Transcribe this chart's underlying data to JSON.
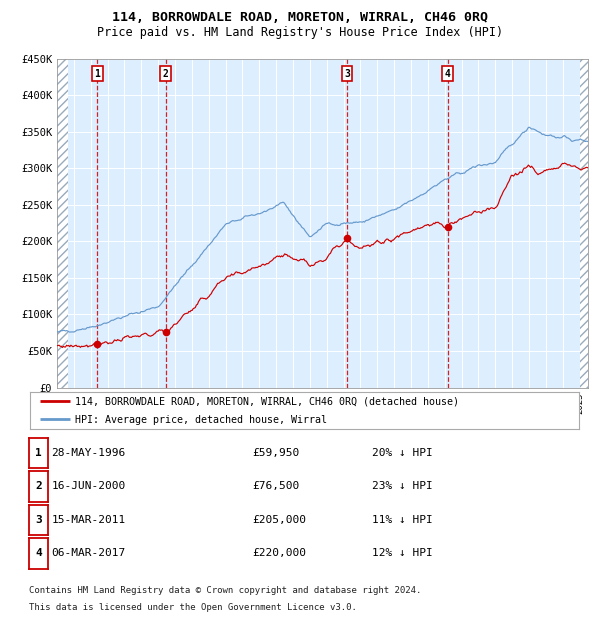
{
  "title": "114, BORROWDALE ROAD, MORETON, WIRRAL, CH46 0RQ",
  "subtitle": "Price paid vs. HM Land Registry's House Price Index (HPI)",
  "ylim": [
    0,
    450000
  ],
  "yticks": [
    0,
    50000,
    100000,
    150000,
    200000,
    250000,
    300000,
    350000,
    400000,
    450000
  ],
  "ytick_labels": [
    "£0",
    "£50K",
    "£100K",
    "£150K",
    "£200K",
    "£250K",
    "£300K",
    "£350K",
    "£400K",
    "£450K"
  ],
  "xmin": 1994.0,
  "xmax": 2025.5,
  "hpi_color": "#6699cc",
  "price_color": "#cc0000",
  "background_color": "#ddeeff",
  "sale_points": [
    {
      "year": 1996.4,
      "price": 59950,
      "label": "1"
    },
    {
      "year": 2000.45,
      "price": 76500,
      "label": "2"
    },
    {
      "year": 2011.2,
      "price": 205000,
      "label": "3"
    },
    {
      "year": 2017.17,
      "price": 220000,
      "label": "4"
    }
  ],
  "legend_entries": [
    "114, BORROWDALE ROAD, MORETON, WIRRAL, CH46 0RQ (detached house)",
    "HPI: Average price, detached house, Wirral"
  ],
  "table_rows": [
    {
      "num": "1",
      "date": "28-MAY-1996",
      "price": "£59,950",
      "hpi": "20% ↓ HPI"
    },
    {
      "num": "2",
      "date": "16-JUN-2000",
      "price": "£76,500",
      "hpi": "23% ↓ HPI"
    },
    {
      "num": "3",
      "date": "15-MAR-2011",
      "price": "£205,000",
      "hpi": "11% ↓ HPI"
    },
    {
      "num": "4",
      "date": "06-MAR-2017",
      "price": "£220,000",
      "hpi": "12% ↓ HPI"
    }
  ],
  "footnote1": "Contains HM Land Registry data © Crown copyright and database right 2024.",
  "footnote2": "This data is licensed under the Open Government Licence v3.0."
}
